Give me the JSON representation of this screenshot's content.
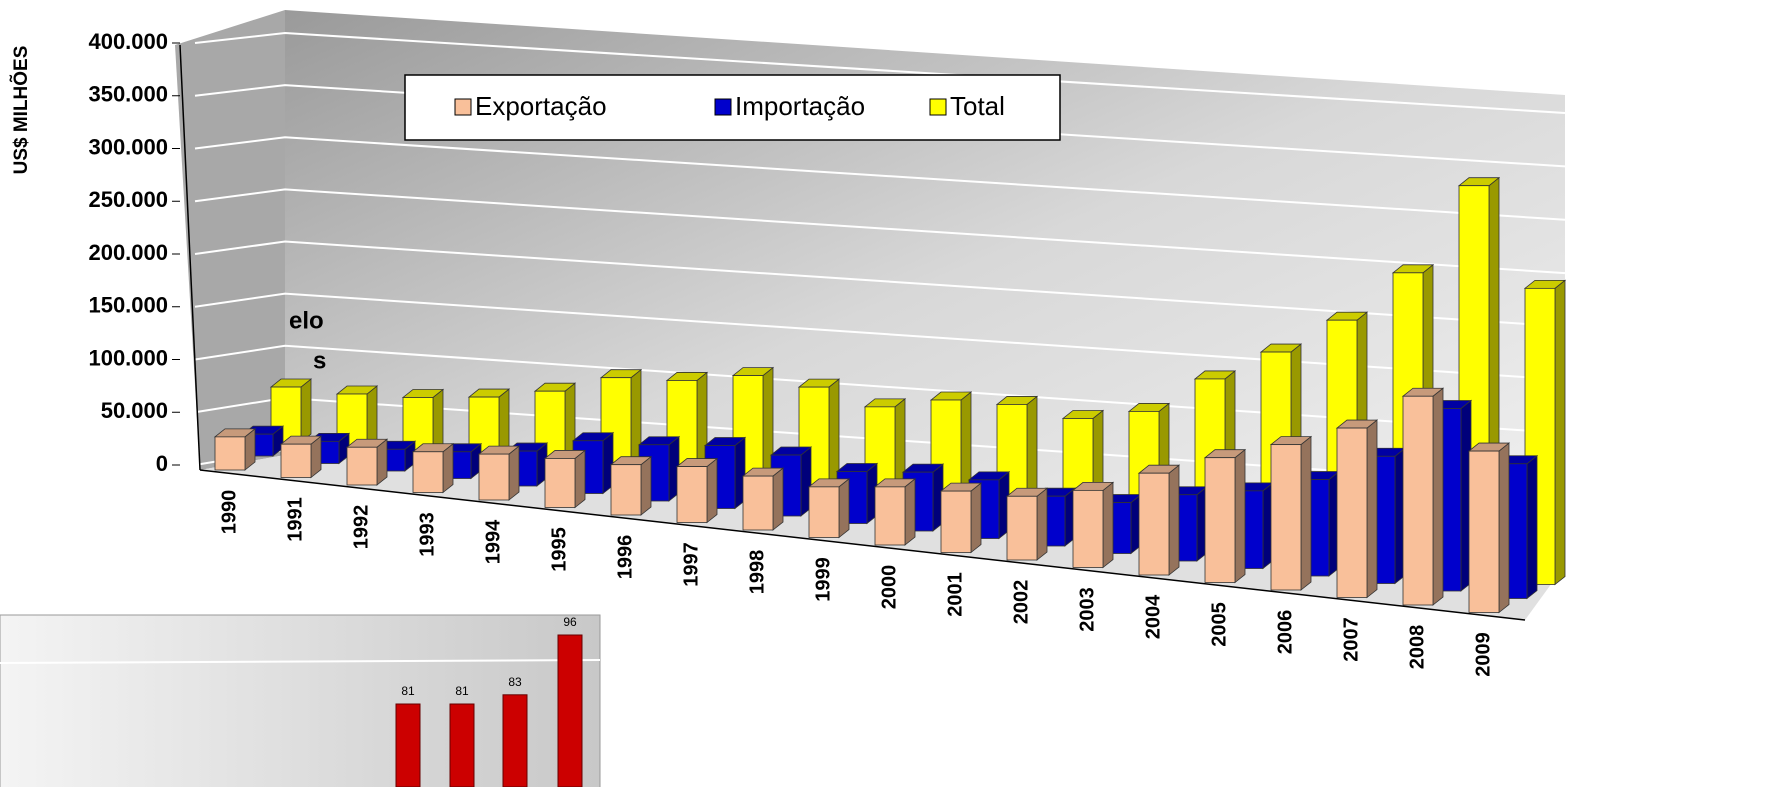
{
  "fragments": [
    "elo",
    "s"
  ],
  "chart_data": [
    {
      "type": "bar3d",
      "ylabel": "US$ MILHÕES",
      "categories": [
        "1990",
        "1991",
        "1992",
        "1993",
        "1994",
        "1995",
        "1996",
        "1997",
        "1998",
        "1999",
        "2000",
        "2001",
        "2002",
        "2003",
        "2004",
        "2005",
        "2006",
        "2007",
        "2008",
        "2009"
      ],
      "series": [
        {
          "name": "Exportação",
          "color": "#f9c09a",
          "values": [
            31400,
            31600,
            35800,
            38600,
            43500,
            46500,
            47700,
            53000,
            51100,
            48000,
            55100,
            58200,
            60400,
            73100,
            96500,
            118300,
            137800,
            160600,
            197900,
            153000
          ]
        },
        {
          "name": "Importação",
          "color": "#0000cc",
          "values": [
            20700,
            21000,
            20600,
            25300,
            33100,
            50000,
            53300,
            59700,
            57800,
            49300,
            55800,
            55600,
            47200,
            48300,
            62800,
            73600,
            91400,
            120600,
            173000,
            127700
          ]
        },
        {
          "name": "Total",
          "color": "#ffff00",
          "values": [
            52100,
            52600,
            56400,
            63900,
            76600,
            96500,
            101000,
            112700,
            108900,
            97300,
            110900,
            113800,
            107600,
            121400,
            159300,
            191900,
            229200,
            281200,
            370900,
            280700
          ]
        }
      ],
      "ylim": [
        0,
        400000
      ],
      "yticks": [
        0,
        {
          "value": 50000,
          "label": "50.000"
        },
        {
          "value": 100000,
          "label": "100.000"
        },
        {
          "value": 150000,
          "label": "150.000"
        },
        {
          "value": 200000,
          "label": "200.000"
        },
        {
          "value": 250000,
          "label": "250.000"
        },
        {
          "value": 300000,
          "label": "300.000"
        },
        {
          "value": 350000,
          "label": "350.000"
        },
        {
          "value": 400000,
          "label": "400.000"
        }
      ],
      "grid": true,
      "legend": "top"
    },
    {
      "type": "bar",
      "color": "#cc0000",
      "values": [
        81,
        81,
        83,
        96
      ]
    }
  ]
}
